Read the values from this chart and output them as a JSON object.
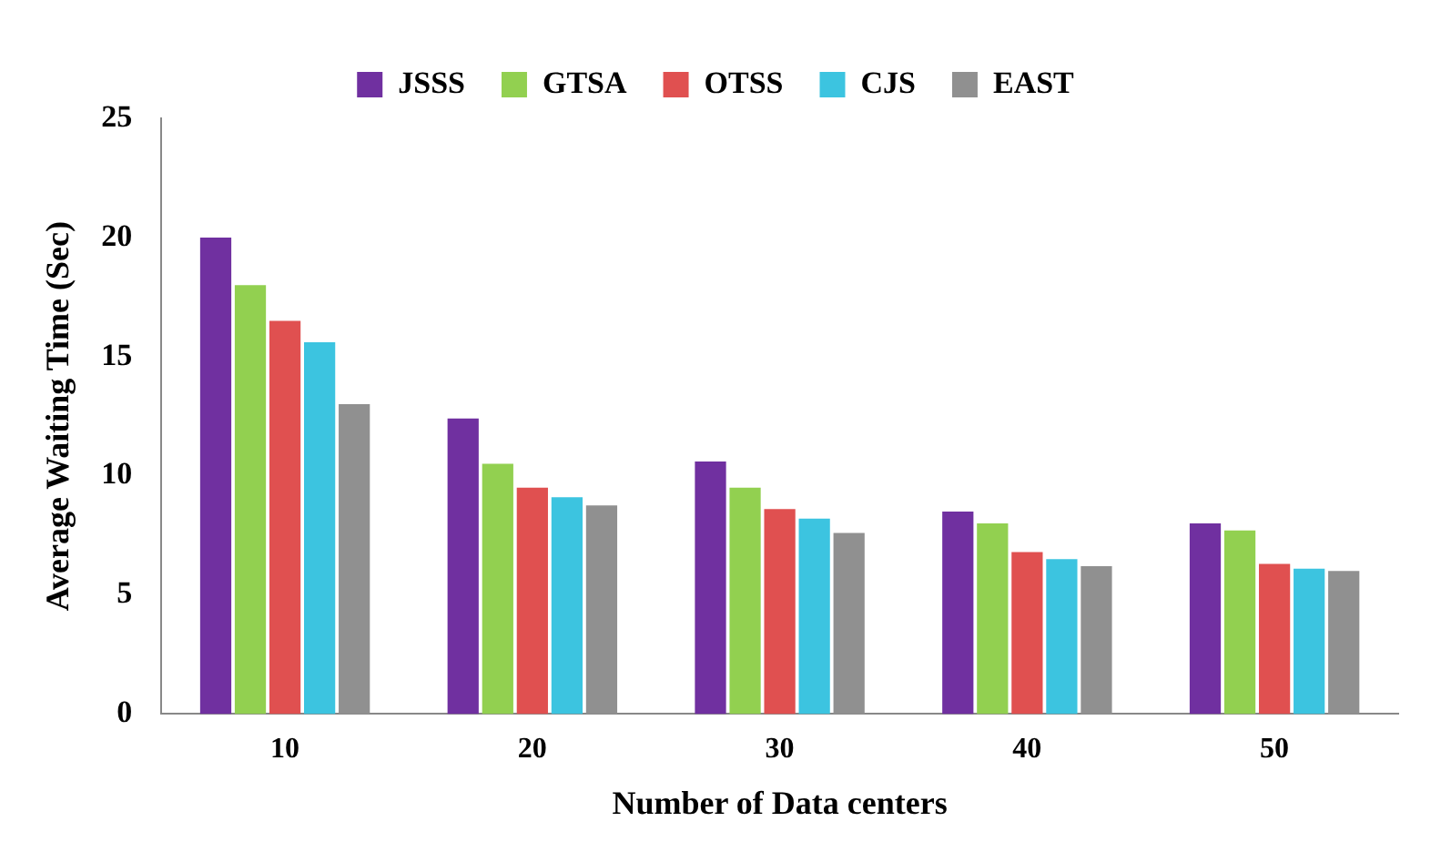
{
  "chart_data": {
    "type": "bar",
    "xlabel": "Number of Data centers",
    "ylabel": "Average Waiting Time (Sec)",
    "categories": [
      "10",
      "20",
      "30",
      "40",
      "50"
    ],
    "series": [
      {
        "name": "JSSS",
        "color": "#7030a0",
        "values": [
          20,
          12.4,
          10.6,
          8.5,
          8
        ]
      },
      {
        "name": "GTSA",
        "color": "#92d050",
        "values": [
          18,
          10.5,
          9.5,
          8,
          7.7
        ]
      },
      {
        "name": "OTSS",
        "color": "#e05050",
        "values": [
          16.5,
          9.5,
          8.6,
          6.8,
          6.3
        ]
      },
      {
        "name": "CJS",
        "color": "#3cc4e0",
        "values": [
          15.6,
          9.1,
          8.2,
          6.5,
          6.1
        ]
      },
      {
        "name": "EAST",
        "color": "#909090",
        "values": [
          13,
          8.75,
          7.6,
          6.2,
          6
        ]
      }
    ],
    "ylim": [
      0,
      25
    ],
    "yticks": [
      0,
      5,
      10,
      15,
      20,
      25
    ],
    "grid": false,
    "legend": "top"
  }
}
